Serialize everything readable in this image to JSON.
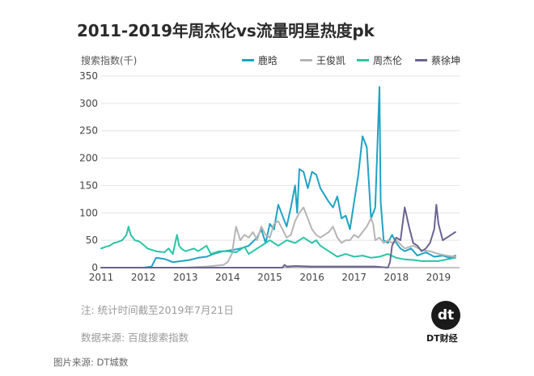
{
  "title": "2011-2019年周杰伦vs流量明星热度pk",
  "colors": {
    "luhan": "#1fa3c4",
    "wangjunkai": "#b5b5b5",
    "jaychou": "#2bc4a6",
    "caixukun": "#6b6390"
  },
  "chart_data": {
    "type": "line",
    "title": "2011-2019年周杰伦vs流量明星热度pk",
    "ylabel": "搜索指数(千)",
    "xlabel": "",
    "ylim": [
      0,
      350
    ],
    "xlim": [
      2011,
      2019.5
    ],
    "yticks": [
      0,
      50,
      100,
      150,
      200,
      250,
      300,
      350
    ],
    "xticks": [
      "2011",
      "2012",
      "2013",
      "2014",
      "2015",
      "2016",
      "2017",
      "2018",
      "2019"
    ],
    "grid": true,
    "legend_position": "top-right",
    "series": [
      {
        "name": "鹿晗",
        "color_key": "luhan",
        "points": [
          [
            2011,
            0
          ],
          [
            2011.5,
            0
          ],
          [
            2012,
            0
          ],
          [
            2012.2,
            2
          ],
          [
            2012.3,
            18
          ],
          [
            2012.5,
            16
          ],
          [
            2012.7,
            10
          ],
          [
            2012.9,
            12
          ],
          [
            2013.1,
            14
          ],
          [
            2013.3,
            18
          ],
          [
            2013.5,
            20
          ],
          [
            2013.7,
            26
          ],
          [
            2013.9,
            30
          ],
          [
            2014.1,
            32
          ],
          [
            2014.3,
            35
          ],
          [
            2014.5,
            40
          ],
          [
            2014.7,
            55
          ],
          [
            2014.8,
            70
          ],
          [
            2014.9,
            45
          ],
          [
            2015.0,
            80
          ],
          [
            2015.1,
            70
          ],
          [
            2015.2,
            115
          ],
          [
            2015.3,
            95
          ],
          [
            2015.4,
            75
          ],
          [
            2015.5,
            110
          ],
          [
            2015.6,
            150
          ],
          [
            2015.65,
            100
          ],
          [
            2015.7,
            180
          ],
          [
            2015.8,
            175
          ],
          [
            2015.9,
            145
          ],
          [
            2016.0,
            175
          ],
          [
            2016.1,
            170
          ],
          [
            2016.2,
            145
          ],
          [
            2016.4,
            120
          ],
          [
            2016.5,
            110
          ],
          [
            2016.6,
            130
          ],
          [
            2016.7,
            90
          ],
          [
            2016.8,
            95
          ],
          [
            2016.9,
            70
          ],
          [
            2017.0,
            120
          ],
          [
            2017.1,
            170
          ],
          [
            2017.2,
            240
          ],
          [
            2017.3,
            220
          ],
          [
            2017.4,
            90
          ],
          [
            2017.5,
            110
          ],
          [
            2017.6,
            330
          ],
          [
            2017.63,
            120
          ],
          [
            2017.7,
            50
          ],
          [
            2017.8,
            45
          ],
          [
            2017.9,
            60
          ],
          [
            2018.0,
            45
          ],
          [
            2018.1,
            35
          ],
          [
            2018.2,
            30
          ],
          [
            2018.35,
            35
          ],
          [
            2018.5,
            22
          ],
          [
            2018.7,
            28
          ],
          [
            2018.9,
            20
          ],
          [
            2019.1,
            22
          ],
          [
            2019.25,
            18
          ],
          [
            2019.4,
            22
          ]
        ]
      },
      {
        "name": "王俊凯",
        "color_key": "wangjunkai",
        "points": [
          [
            2011,
            0
          ],
          [
            2012,
            0
          ],
          [
            2013,
            0
          ],
          [
            2013.5,
            2
          ],
          [
            2013.9,
            5
          ],
          [
            2014.0,
            10
          ],
          [
            2014.1,
            25
          ],
          [
            2014.2,
            75
          ],
          [
            2014.3,
            50
          ],
          [
            2014.4,
            60
          ],
          [
            2014.5,
            55
          ],
          [
            2014.6,
            65
          ],
          [
            2014.7,
            50
          ],
          [
            2014.8,
            75
          ],
          [
            2014.9,
            60
          ],
          [
            2015.0,
            55
          ],
          [
            2015.1,
            80
          ],
          [
            2015.2,
            85
          ],
          [
            2015.3,
            70
          ],
          [
            2015.4,
            55
          ],
          [
            2015.5,
            60
          ],
          [
            2015.6,
            85
          ],
          [
            2015.7,
            100
          ],
          [
            2015.8,
            110
          ],
          [
            2015.9,
            90
          ],
          [
            2016.0,
            70
          ],
          [
            2016.1,
            60
          ],
          [
            2016.2,
            55
          ],
          [
            2016.4,
            65
          ],
          [
            2016.5,
            75
          ],
          [
            2016.6,
            55
          ],
          [
            2016.7,
            45
          ],
          [
            2016.8,
            50
          ],
          [
            2016.9,
            50
          ],
          [
            2017.0,
            60
          ],
          [
            2017.1,
            55
          ],
          [
            2017.2,
            65
          ],
          [
            2017.3,
            75
          ],
          [
            2017.4,
            90
          ],
          [
            2017.45,
            80
          ],
          [
            2017.5,
            50
          ],
          [
            2017.6,
            55
          ],
          [
            2017.7,
            45
          ],
          [
            2017.8,
            50
          ],
          [
            2017.9,
            45
          ],
          [
            2018.0,
            50
          ],
          [
            2018.2,
            35
          ],
          [
            2018.4,
            40
          ],
          [
            2018.6,
            32
          ],
          [
            2018.8,
            30
          ],
          [
            2019.0,
            25
          ],
          [
            2019.2,
            22
          ],
          [
            2019.4,
            20
          ]
        ]
      },
      {
        "name": "周杰伦",
        "color_key": "jaychou",
        "points": [
          [
            2011.0,
            35
          ],
          [
            2011.1,
            38
          ],
          [
            2011.2,
            40
          ],
          [
            2011.3,
            45
          ],
          [
            2011.4,
            47
          ],
          [
            2011.5,
            50
          ],
          [
            2011.6,
            60
          ],
          [
            2011.65,
            75
          ],
          [
            2011.7,
            60
          ],
          [
            2011.8,
            50
          ],
          [
            2011.9,
            48
          ],
          [
            2012.0,
            42
          ],
          [
            2012.1,
            35
          ],
          [
            2012.3,
            30
          ],
          [
            2012.5,
            28
          ],
          [
            2012.6,
            35
          ],
          [
            2012.7,
            25
          ],
          [
            2012.8,
            60
          ],
          [
            2012.85,
            40
          ],
          [
            2012.9,
            35
          ],
          [
            2013.0,
            30
          ],
          [
            2013.2,
            35
          ],
          [
            2013.3,
            30
          ],
          [
            2013.5,
            40
          ],
          [
            2013.6,
            25
          ],
          [
            2013.8,
            30
          ],
          [
            2014.0,
            30
          ],
          [
            2014.2,
            28
          ],
          [
            2014.4,
            38
          ],
          [
            2014.5,
            25
          ],
          [
            2014.7,
            35
          ],
          [
            2014.8,
            40
          ],
          [
            2014.9,
            45
          ],
          [
            2015.0,
            50
          ],
          [
            2015.1,
            45
          ],
          [
            2015.2,
            40
          ],
          [
            2015.4,
            50
          ],
          [
            2015.6,
            45
          ],
          [
            2015.8,
            55
          ],
          [
            2016.0,
            45
          ],
          [
            2016.1,
            50
          ],
          [
            2016.2,
            40
          ],
          [
            2016.4,
            30
          ],
          [
            2016.6,
            20
          ],
          [
            2016.8,
            25
          ],
          [
            2017.0,
            20
          ],
          [
            2017.2,
            22
          ],
          [
            2017.4,
            18
          ],
          [
            2017.6,
            20
          ],
          [
            2017.8,
            25
          ],
          [
            2018.0,
            18
          ],
          [
            2018.2,
            15
          ],
          [
            2018.4,
            14
          ],
          [
            2018.6,
            12
          ],
          [
            2018.8,
            12
          ],
          [
            2019.0,
            12
          ],
          [
            2019.2,
            15
          ],
          [
            2019.4,
            18
          ]
        ]
      },
      {
        "name": "蔡徐坤",
        "color_key": "caixukun",
        "points": [
          [
            2011,
            0
          ],
          [
            2015.0,
            0
          ],
          [
            2015.3,
            0
          ],
          [
            2015.35,
            5
          ],
          [
            2015.4,
            2
          ],
          [
            2015.6,
            3
          ],
          [
            2016.0,
            2
          ],
          [
            2016.5,
            2
          ],
          [
            2017.0,
            2
          ],
          [
            2017.5,
            2
          ],
          [
            2017.8,
            0
          ],
          [
            2017.85,
            10
          ],
          [
            2017.9,
            40
          ],
          [
            2018.0,
            55
          ],
          [
            2018.1,
            50
          ],
          [
            2018.2,
            110
          ],
          [
            2018.3,
            75
          ],
          [
            2018.4,
            45
          ],
          [
            2018.5,
            40
          ],
          [
            2018.6,
            30
          ],
          [
            2018.7,
            35
          ],
          [
            2018.8,
            45
          ],
          [
            2018.9,
            70
          ],
          [
            2018.95,
            115
          ],
          [
            2019.0,
            80
          ],
          [
            2019.1,
            50
          ],
          [
            2019.2,
            55
          ],
          [
            2019.3,
            60
          ],
          [
            2019.4,
            65
          ]
        ]
      }
    ]
  },
  "notes": {
    "stat_time": "注: 统计时间截至2019年7月21日",
    "source": "数据来源: 百度搜索指数"
  },
  "credit": "图片来源: DT城数",
  "logo": {
    "mark": "dt",
    "label": "DT财经"
  }
}
